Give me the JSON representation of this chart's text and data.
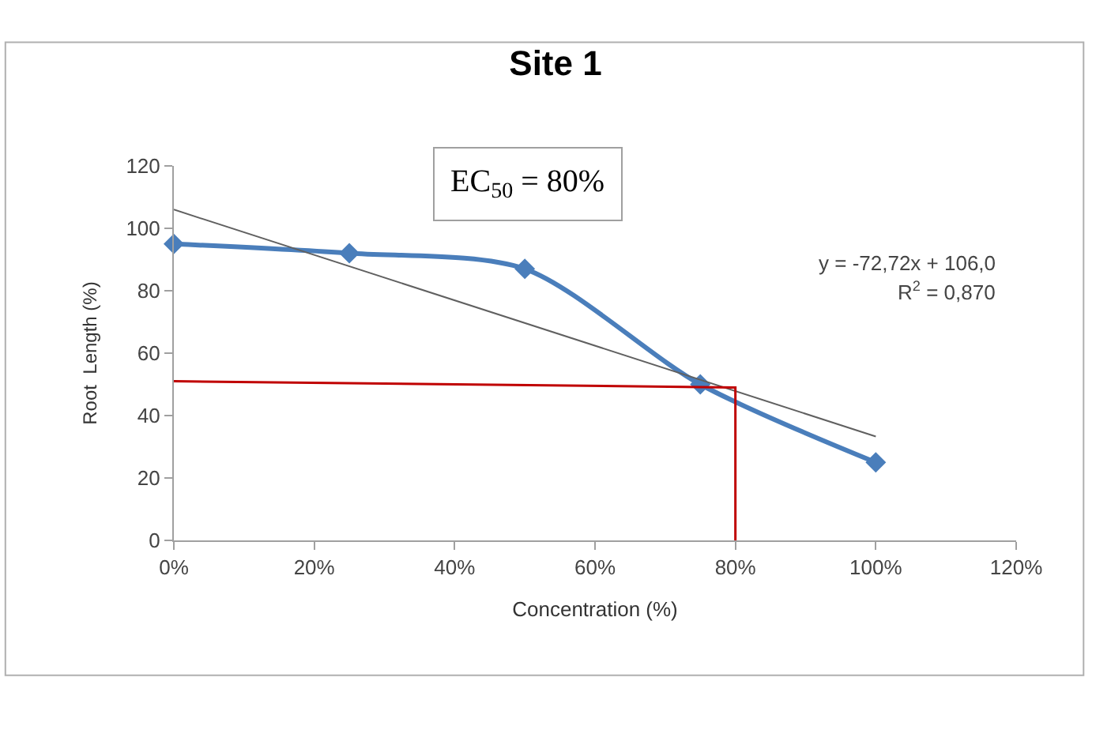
{
  "chart_data": {
    "type": "line",
    "title": "Site 1",
    "xlabel": "Concentration (%)",
    "ylabel": "Root  Length (%)",
    "xlim": [
      0,
      1.2
    ],
    "xticks": [
      {
        "value": 0,
        "label": "0%"
      },
      {
        "value": 0.2,
        "label": "20%"
      },
      {
        "value": 0.4,
        "label": "40%"
      },
      {
        "value": 0.6,
        "label": "60%"
      },
      {
        "value": 0.8,
        "label": "80%"
      },
      {
        "value": 1.0,
        "label": "100%"
      },
      {
        "value": 1.2,
        "label": "120%"
      }
    ],
    "ylim": [
      0,
      120
    ],
    "yticks": [
      0,
      20,
      40,
      60,
      80,
      100,
      120
    ],
    "marker": "diamond",
    "line_style": "solid",
    "x": [
      0,
      0.25,
      0.5,
      0.75,
      1.0
    ],
    "series": [
      {
        "color": "#4a7ebb",
        "values": [
          95,
          92,
          87,
          50,
          25
        ]
      },
      {
        "color": "#606060",
        "x": [
          0,
          1.0
        ],
        "values": [
          106,
          33.3
        ],
        "marker": "none"
      },
      {
        "color": "#c00000",
        "x": [
          0,
          0.8,
          0.8
        ],
        "values": [
          51,
          49,
          0
        ],
        "marker": "none"
      }
    ],
    "annotations": [
      "EC$_{50}$ = 80%",
      "y = -72,72x + 106,0",
      "R$^{2}$ = 0,870"
    ]
  }
}
